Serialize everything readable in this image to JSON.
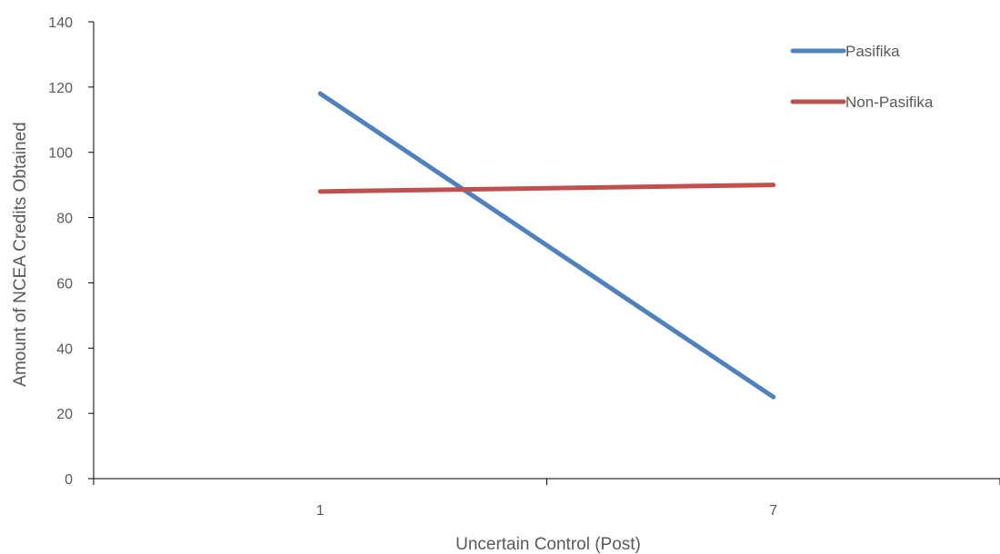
{
  "chart_data": {
    "type": "line",
    "title": "",
    "xlabel": "Uncertain Control (Post)",
    "ylabel": "Amount of NCEA Credits Obtained",
    "categories": [
      "1",
      "7"
    ],
    "ylim": [
      0,
      140
    ],
    "yticks": [
      "0",
      "20",
      "40",
      "60",
      "80",
      "100",
      "120",
      "140"
    ],
    "grid": false,
    "legend_position": "top-right",
    "series": [
      {
        "name": "Pasifika",
        "values": [
          118,
          25
        ],
        "color": "#4F81BD"
      },
      {
        "name": "Non-Pasifika",
        "values": [
          88,
          90
        ],
        "color": "#C0504D"
      }
    ],
    "axis_color": "#000000"
  }
}
